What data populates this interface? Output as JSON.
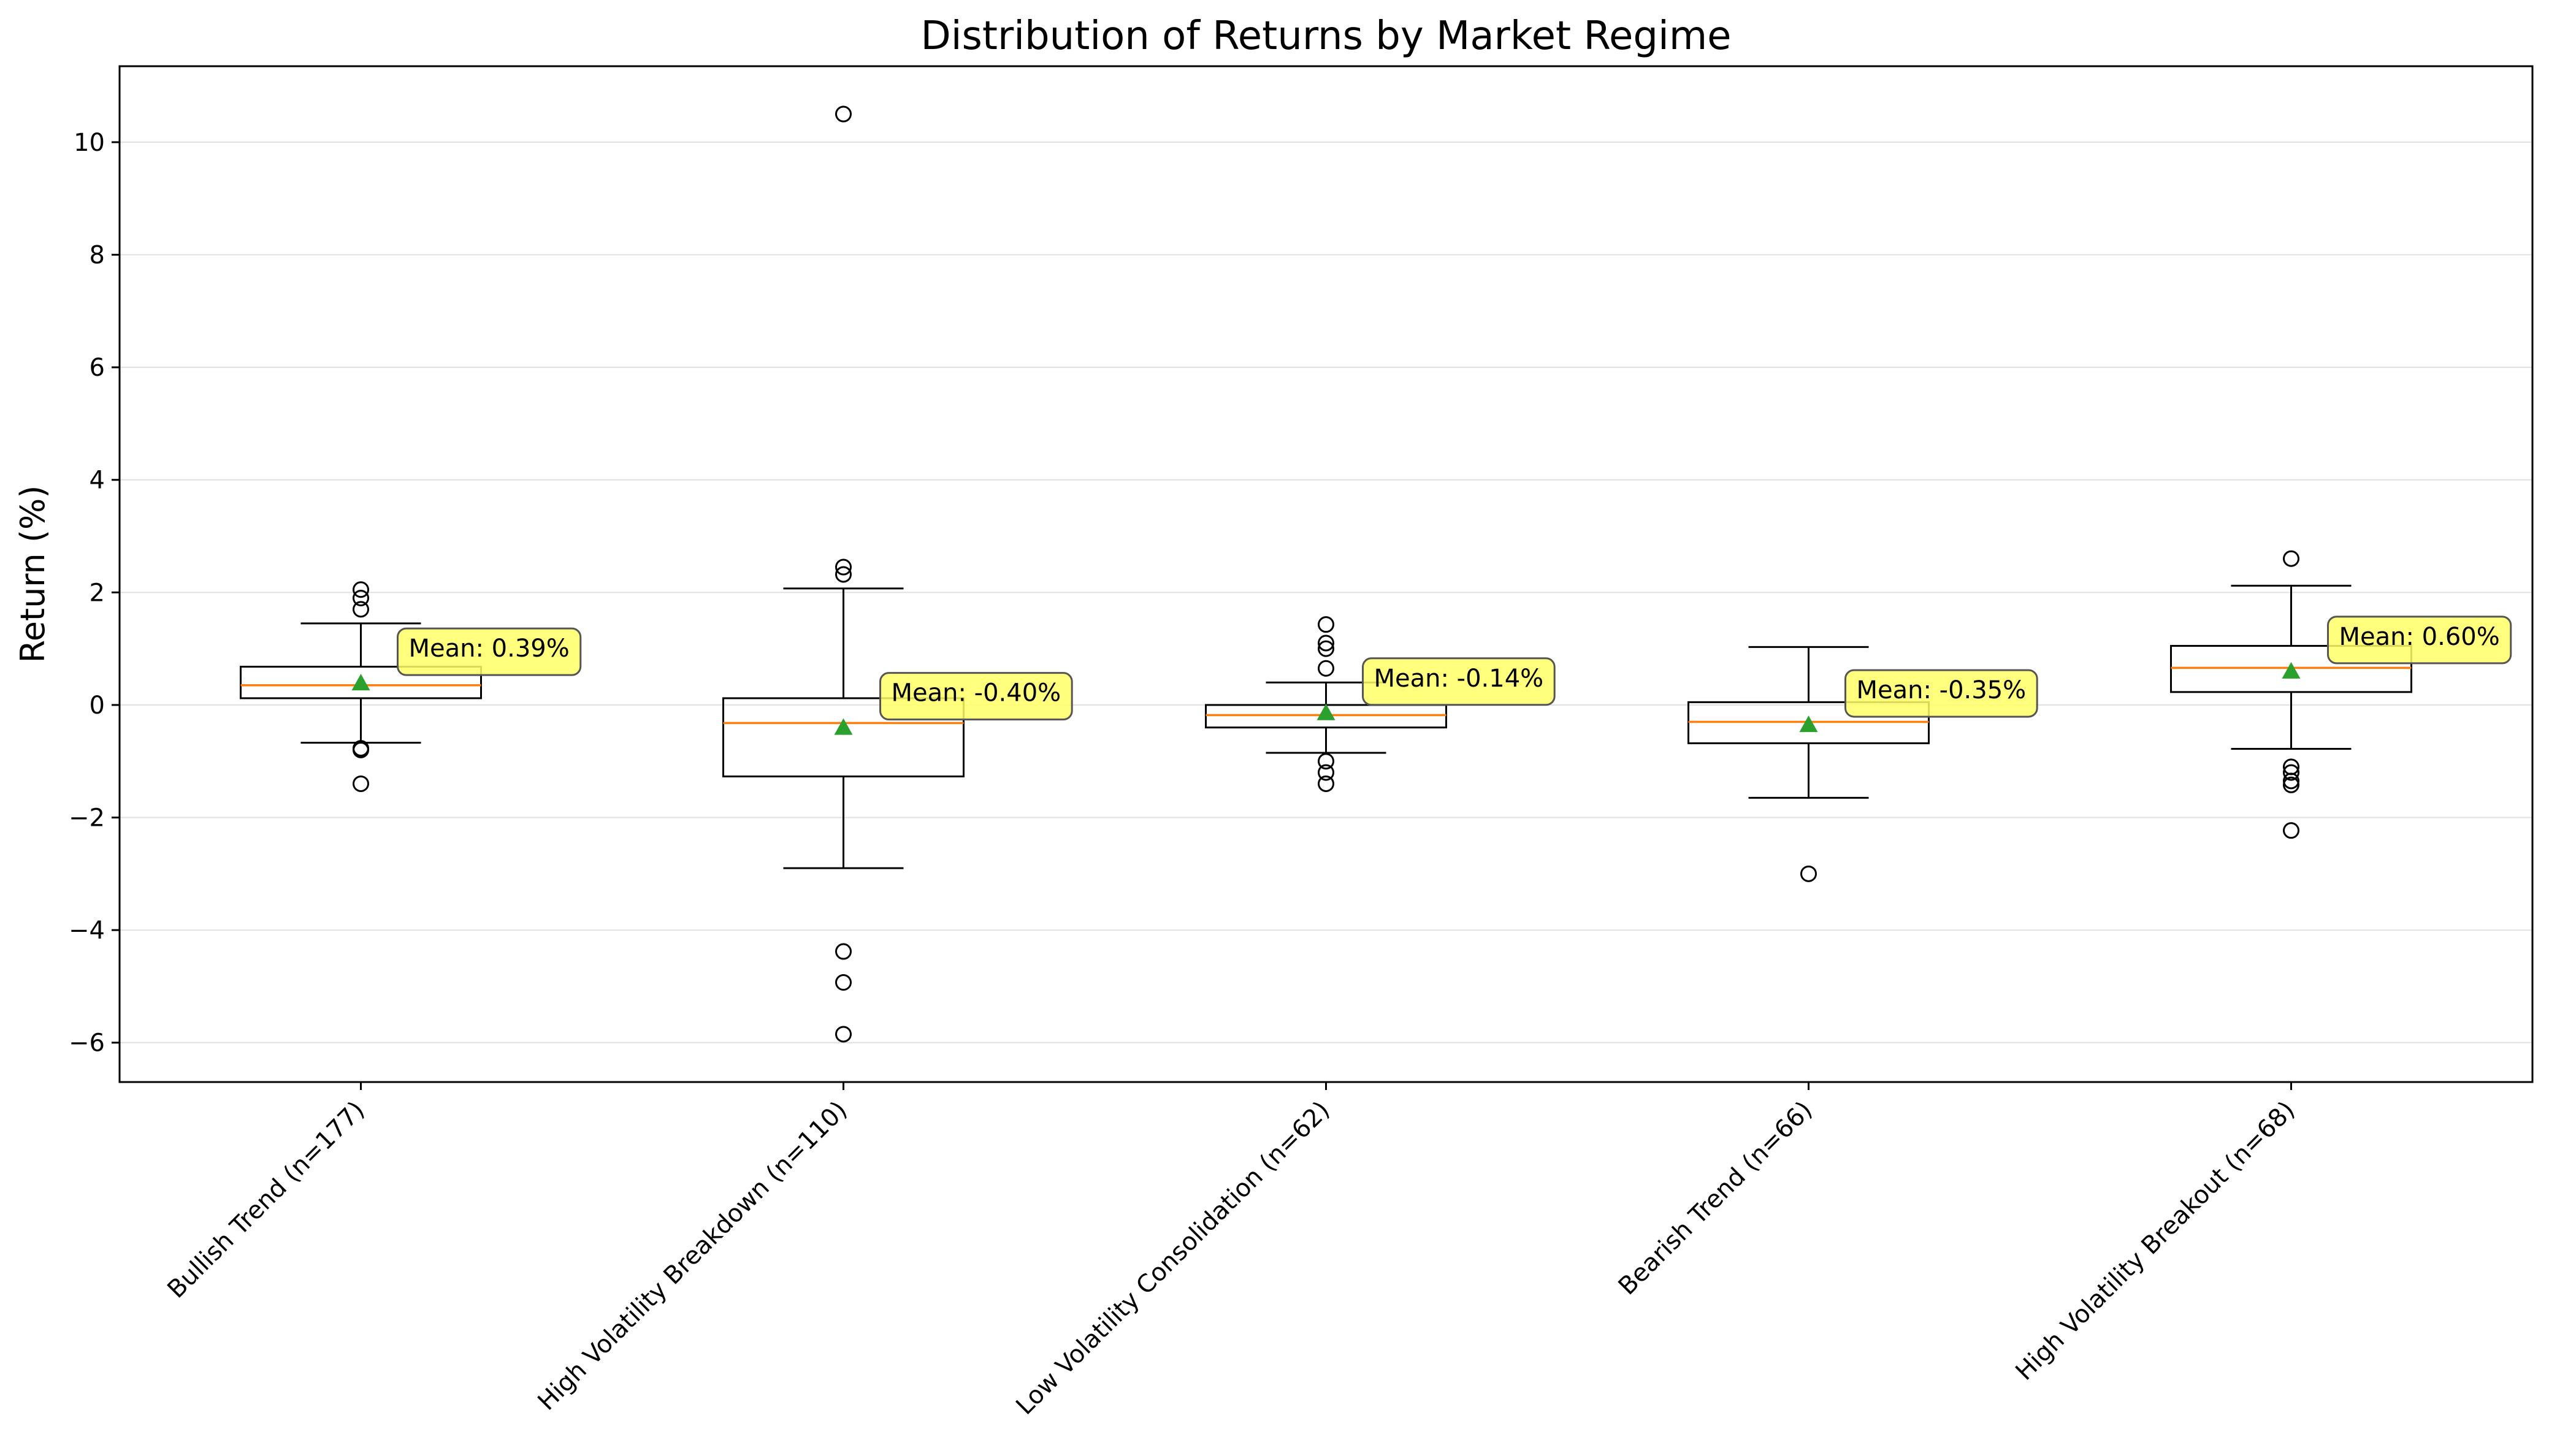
{
  "chart_data": {
    "type": "box",
    "title": "Distribution of Returns by Market Regime",
    "xlabel": "",
    "ylabel": "Return (%)",
    "ylim": [
      -6.7,
      11.35
    ],
    "yticks": [
      -6,
      -4,
      -2,
      0,
      2,
      4,
      6,
      8,
      10
    ],
    "ytick_labels": [
      "−6",
      "−4",
      "−2",
      "0",
      "2",
      "4",
      "6",
      "8",
      "10"
    ],
    "grid": "horizontal",
    "categories": [
      "Bullish Trend (n=177)",
      "High Volatility Breakdown (n=110)",
      "Low Volatility Consolidation (n=62)",
      "Bearish Trend (n=66)",
      "High Volatility Breakout (n=68)"
    ],
    "boxes": [
      {
        "q1": 0.12,
        "median": 0.35,
        "q3": 0.68,
        "whisker_low": -0.67,
        "whisker_high": 1.45,
        "mean": 0.39,
        "mean_label": "Mean: 0.39%",
        "outliers": [
          2.05,
          1.9,
          1.7,
          -0.77,
          -0.8,
          -1.4
        ]
      },
      {
        "q1": -1.27,
        "median": -0.32,
        "q3": 0.12,
        "whisker_low": -2.9,
        "whisker_high": 2.07,
        "mean": -0.4,
        "mean_label": "Mean: -0.40%",
        "outliers": [
          10.5,
          2.45,
          2.32,
          -4.38,
          -4.93,
          -5.85
        ]
      },
      {
        "q1": -0.4,
        "median": -0.18,
        "q3": 0.0,
        "whisker_low": -0.85,
        "whisker_high": 0.4,
        "mean": -0.14,
        "mean_label": "Mean: -0.14%",
        "outliers": [
          1.43,
          1.1,
          1.0,
          0.65,
          -1.0,
          -1.2,
          -1.4
        ]
      },
      {
        "q1": -0.68,
        "median": -0.3,
        "q3": 0.05,
        "whisker_low": -1.65,
        "whisker_high": 1.03,
        "mean": -0.35,
        "mean_label": "Mean: -0.35%",
        "outliers": [
          -3.0
        ]
      },
      {
        "q1": 0.23,
        "median": 0.66,
        "q3": 1.05,
        "whisker_low": -0.78,
        "whisker_high": 2.12,
        "mean": 0.6,
        "mean_label": "Mean: 0.60%",
        "outliers": [
          2.6,
          -1.1,
          -1.2,
          -1.35,
          -1.42,
          -2.23
        ]
      }
    ],
    "colors": {
      "box": "#000000",
      "median": "#ff7f0e",
      "mean_marker": "#2ca02c",
      "annotation_fill": "#ffff66",
      "grid": "#e0e0e0"
    }
  }
}
